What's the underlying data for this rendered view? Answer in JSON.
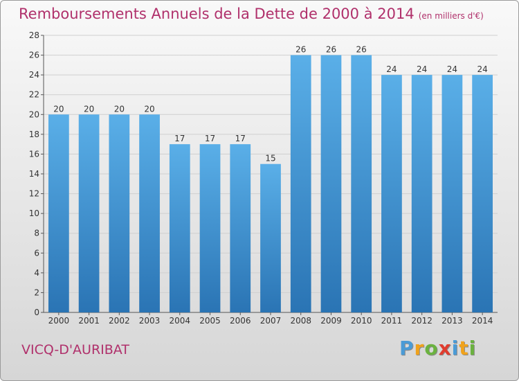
{
  "header": {
    "title": "Remboursements Annuels de la Dette de 2000 à 2014",
    "subtitle": "(en milliers d'€)"
  },
  "commune": "VICQ-D'AURIBAT",
  "brand": {
    "letters": [
      "P",
      "r",
      "o",
      "x",
      "i",
      "t",
      "i"
    ],
    "colors": [
      "#4a9bd6",
      "#f0a21c",
      "#6bb240",
      "#e03c2e",
      "#4a9bd6",
      "#f0a21c",
      "#6bb240"
    ]
  },
  "colors": {
    "bar_light": "#5aafe8",
    "bar_dark": "#2a74b4",
    "title": "#b0306b",
    "grid": "#cfcfcf"
  },
  "chart_data": {
    "type": "bar",
    "title": "Remboursements Annuels de la Dette de 2000 à 2014",
    "subtitle": "(en milliers d'€)",
    "categories": [
      "2000",
      "2001",
      "2002",
      "2003",
      "2004",
      "2005",
      "2006",
      "2007",
      "2008",
      "2009",
      "2010",
      "2011",
      "2012",
      "2013",
      "2014"
    ],
    "values": [
      20,
      20,
      20,
      20,
      17,
      17,
      17,
      15,
      26,
      26,
      26,
      24,
      24,
      24,
      24
    ],
    "ylim": [
      0,
      28
    ],
    "yticks": [
      0,
      2,
      4,
      6,
      8,
      10,
      12,
      14,
      16,
      18,
      20,
      22,
      24,
      26,
      28
    ],
    "grid": true,
    "data_labels": true
  }
}
